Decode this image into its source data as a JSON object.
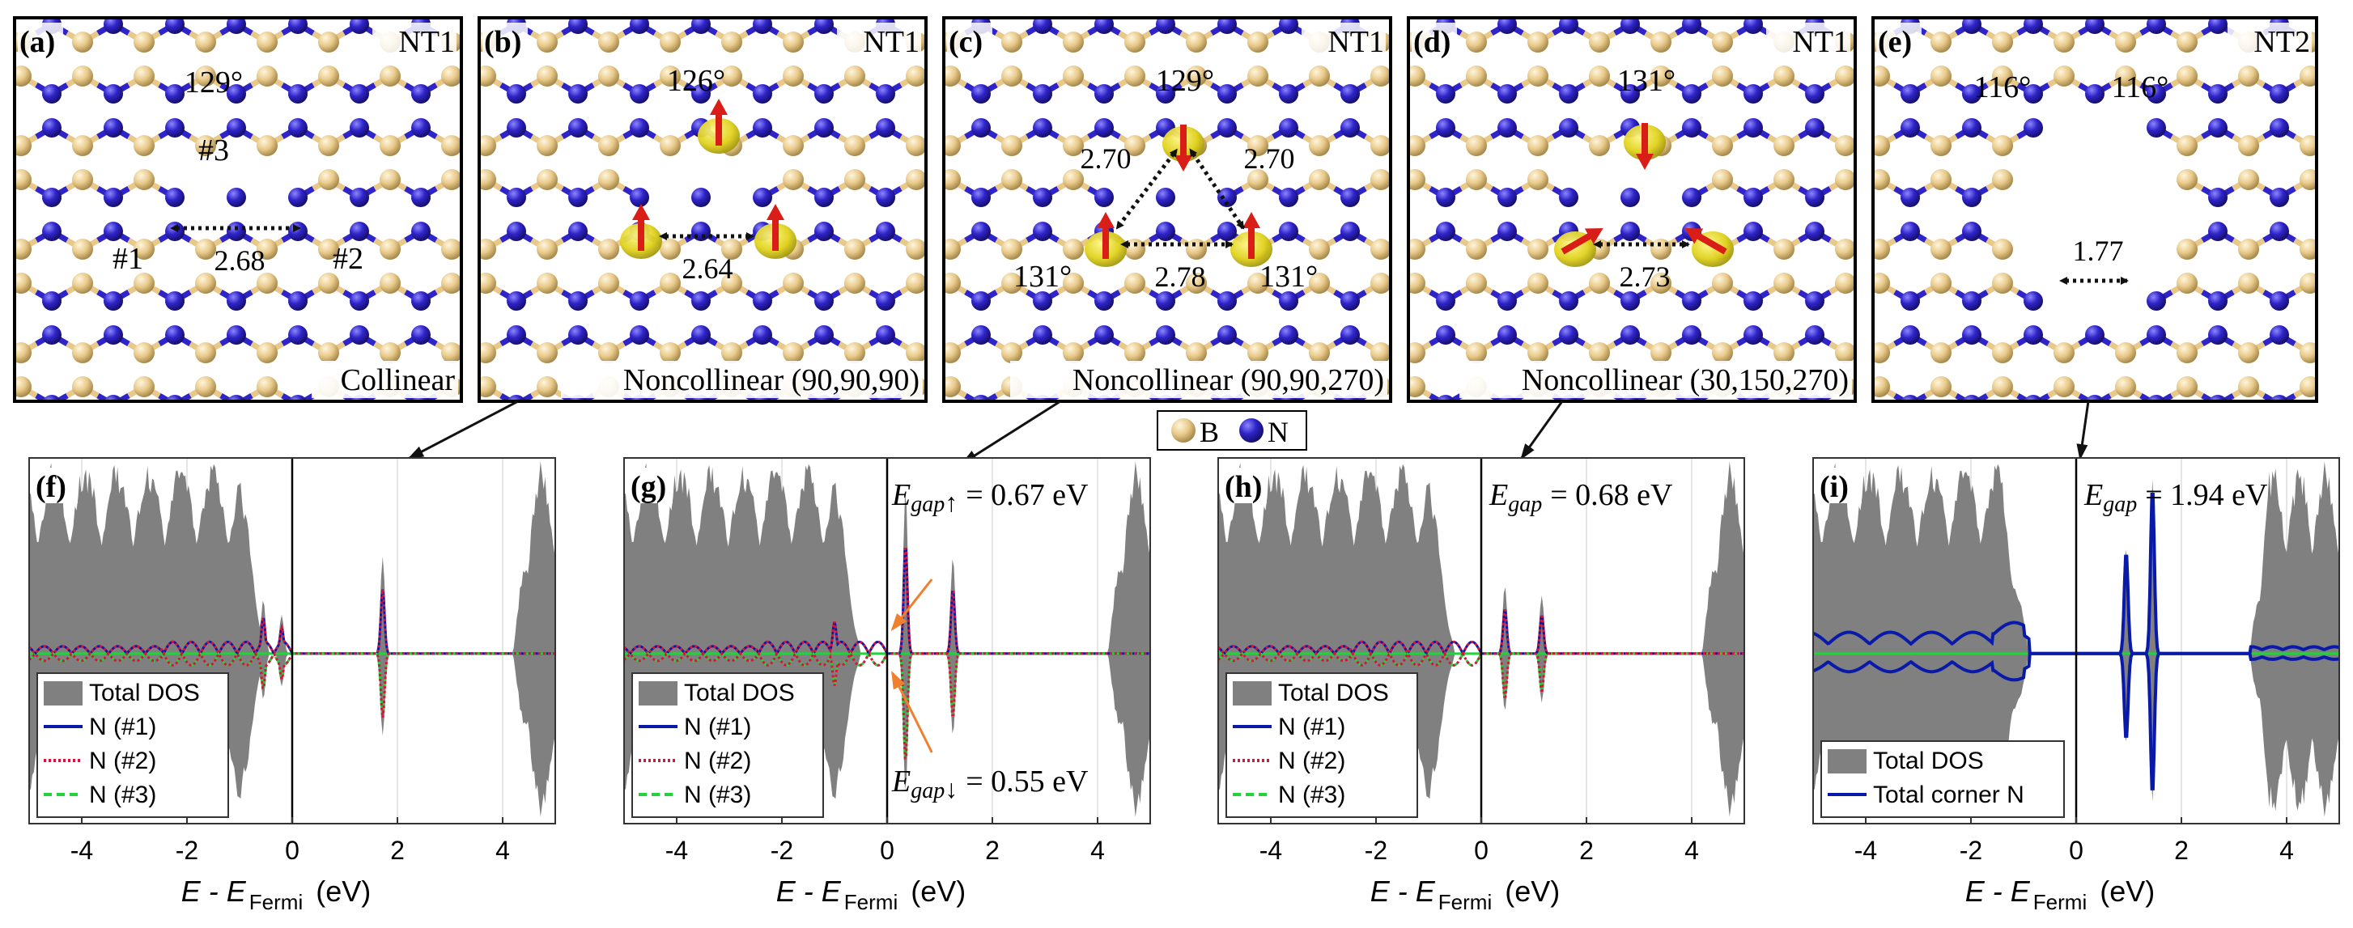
{
  "structure_panels": [
    {
      "id": "a",
      "label": "(a)",
      "tag": "NT1",
      "mode": "Collinear",
      "angles": [
        "129°"
      ],
      "distances": [
        "2.68"
      ],
      "atom_labels": [
        "#1",
        "#2",
        "#3"
      ]
    },
    {
      "id": "b",
      "label": "(b)",
      "tag": "NT1",
      "mode": "Noncollinear (90,90,90)",
      "angles": [
        "126°"
      ],
      "distances": [
        "2.64"
      ],
      "atom_labels": []
    },
    {
      "id": "c",
      "label": "(c)",
      "tag": "NT1",
      "mode": "Noncollinear (90,90,270)",
      "angles": [
        "129°",
        "131°",
        "131°"
      ],
      "distances": [
        "2.70",
        "2.70",
        "2.78"
      ],
      "atom_labels": []
    },
    {
      "id": "d",
      "label": "(d)",
      "tag": "NT1",
      "mode": "Noncollinear (30,150,270)",
      "angles": [
        "131°"
      ],
      "distances": [
        "2.73"
      ],
      "atom_labels": []
    },
    {
      "id": "e",
      "label": "(e)",
      "tag": "NT2",
      "mode": "",
      "angles": [
        "116°",
        "116°"
      ],
      "distances": [
        "1.77"
      ],
      "atom_labels": []
    }
  ],
  "species_legend": {
    "boron": "B",
    "nitrogen": "N"
  },
  "colors": {
    "boron": "#e8c98a",
    "nitrogen": "#2f24c8",
    "dos_fill": "#808080",
    "n1": "#0a1aa8",
    "n2": "#d6143c",
    "n3": "#22d23a",
    "spin_arrow": "#d81e16",
    "spin_density": "#e6dc28",
    "pointer": "#ee8030"
  },
  "chart_data": [
    {
      "type": "area",
      "panel": "(f)",
      "xlabel_prefix": "E - E",
      "xlabel_sub": "Fermi",
      "xlabel_unit": "(eV)",
      "xlim": [
        -5,
        5
      ],
      "xticks": [
        -4,
        -2,
        0,
        2,
        4
      ],
      "xtick_labels": [
        "-4",
        "-2",
        "0",
        "2",
        "4"
      ],
      "fermi_level": 0,
      "gap_annotation": null,
      "legend": [
        "Total DOS",
        "N (#1)",
        "N (#2)",
        "N (#3)"
      ],
      "peaks": [
        [
          -0.55,
          0.28
        ],
        [
          -0.2,
          0.2
        ],
        [
          1.72,
          0.5
        ]
      ]
    },
    {
      "type": "area",
      "panel": "(g)",
      "xlabel_prefix": "E - E",
      "xlabel_sub": "Fermi",
      "xlabel_unit": "(eV)",
      "xlim": [
        -5,
        5
      ],
      "xticks": [
        -4,
        -2,
        0,
        2,
        4
      ],
      "xtick_labels": [
        "-4",
        "-2",
        "0",
        "2",
        "4"
      ],
      "fermi_level": 0,
      "gap_up": {
        "symbol": "E",
        "sub": "gap",
        "arrow": "↑",
        "value": "= 0.67 eV"
      },
      "gap_down": {
        "symbol": "E",
        "sub": "gap",
        "arrow": "↓",
        "value": "= 0.55 eV"
      },
      "legend": [
        "Total DOS",
        "N (#1)",
        "N (#2)",
        "N (#3)"
      ],
      "peaks": [
        [
          -1.0,
          0.25
        ],
        [
          0.35,
          0.85
        ],
        [
          1.25,
          0.5
        ]
      ]
    },
    {
      "type": "area",
      "panel": "(h)",
      "xlabel_prefix": "E - E",
      "xlabel_sub": "Fermi",
      "xlabel_unit": "(eV)",
      "xlim": [
        -5,
        5
      ],
      "xticks": [
        -4,
        -2,
        0,
        2,
        4
      ],
      "xtick_labels": [
        "-4",
        "-2",
        "0",
        "2",
        "4"
      ],
      "fermi_level": 0,
      "gap": {
        "symbol": "E",
        "sub": "gap",
        "value": "= 0.68 eV"
      },
      "legend": [
        "Total DOS",
        "N (#1)",
        "N (#2)",
        "N (#3)"
      ],
      "peaks": [
        [
          0.45,
          0.35
        ],
        [
          1.15,
          0.3
        ]
      ]
    },
    {
      "type": "area",
      "panel": "(i)",
      "xlabel_prefix": "E - E",
      "xlabel_sub": "Fermi",
      "xlabel_unit": "(eV)",
      "xlim": [
        -5,
        5
      ],
      "xticks": [
        -4,
        -2,
        0,
        2,
        4
      ],
      "xtick_labels": [
        "-4",
        "-2",
        "0",
        "2",
        "4"
      ],
      "fermi_level": 0,
      "gap": {
        "symbol": "E",
        "sub": "gap",
        "value": "= 1.94 eV"
      },
      "legend": [
        "Total DOS",
        "Total corner N"
      ],
      "peaks": [
        [
          0.95,
          0.55
        ],
        [
          1.45,
          0.9
        ]
      ]
    }
  ]
}
